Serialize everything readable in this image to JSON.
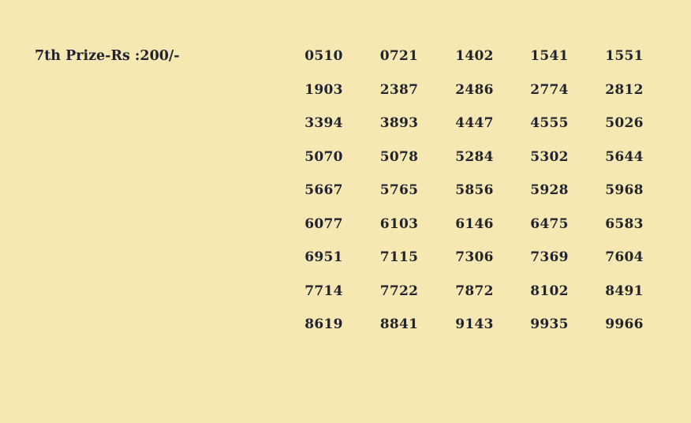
{
  "page": {
    "background_color": "#f6e8b3",
    "text_color": "#23232e"
  },
  "prize_section": {
    "title": "7th Prize-Rs :200/-",
    "numbers": [
      [
        "0510",
        "0721",
        "1402",
        "1541",
        "1551"
      ],
      [
        "1903",
        "2387",
        "2486",
        "2774",
        "2812"
      ],
      [
        "3394",
        "3893",
        "4447",
        "4555",
        "5026"
      ],
      [
        "5070",
        "5078",
        "5284",
        "5302",
        "5644"
      ],
      [
        "5667",
        "5765",
        "5856",
        "5928",
        "5968"
      ],
      [
        "6077",
        "6103",
        "6146",
        "6475",
        "6583"
      ],
      [
        "6951",
        "7115",
        "7306",
        "7369",
        "7604"
      ],
      [
        "7714",
        "7722",
        "7872",
        "8102",
        "8491"
      ],
      [
        "8619",
        "8841",
        "9143",
        "9935",
        "9966"
      ]
    ]
  }
}
